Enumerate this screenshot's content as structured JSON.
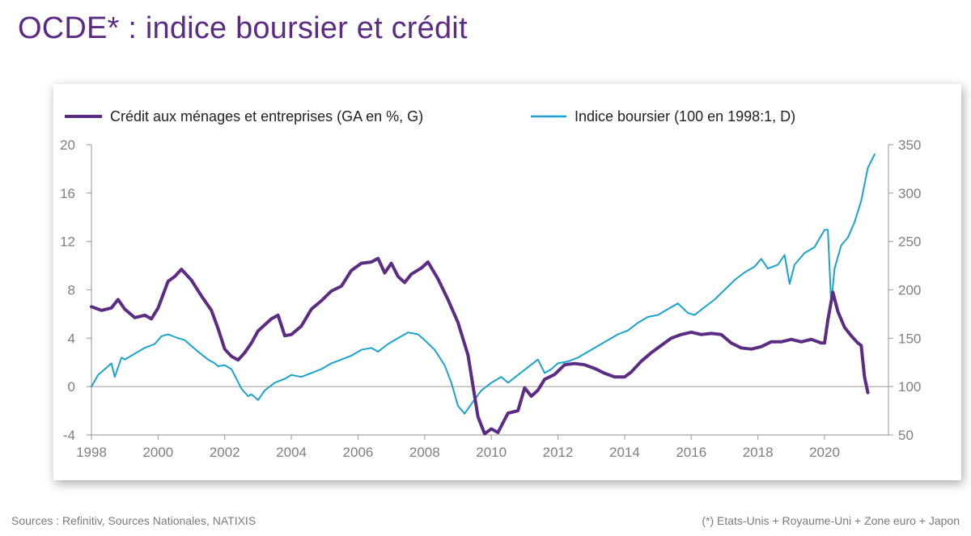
{
  "title": "OCDE* : indice boursier et crédit",
  "footer": {
    "sources": "Sources : Refinitiv, Sources Nationales, NATIXIS",
    "note": "(*) Etats-Unis + Royaume-Uni + Zone euro + Japon"
  },
  "colors": {
    "credit": "#5b2c83",
    "stock": "#1aa3cf",
    "axis": "#a6a6a6",
    "title": "#5b2c83"
  },
  "chart_data": {
    "type": "line",
    "title": "",
    "x_range": [
      1998,
      2021.8
    ],
    "x_ticks": [
      1998,
      2000,
      2002,
      2004,
      2006,
      2008,
      2010,
      2012,
      2014,
      2016,
      2018,
      2020
    ],
    "x_tick_labels": [
      "1998",
      "2000",
      "2002",
      "2004",
      "2006",
      "2008",
      "2010",
      "2012",
      "2014",
      "2016",
      "2018",
      "2020"
    ],
    "y_left": {
      "range": [
        -4,
        20
      ],
      "ticks": [
        -4,
        0,
        4,
        8,
        12,
        16,
        20
      ],
      "tick_labels": [
        "-4",
        "0",
        "4",
        "8",
        "12",
        "16",
        "20"
      ]
    },
    "y_right": {
      "range": [
        50,
        350
      ],
      "ticks": [
        50,
        100,
        150,
        200,
        250,
        300,
        350
      ],
      "tick_labels": [
        "50",
        "100",
        "150",
        "200",
        "250",
        "300",
        "350"
      ]
    },
    "zero_line": true,
    "grid": false,
    "legend_position": "top",
    "series": [
      {
        "name": "Crédit aux ménages et entreprises (GA en %, G)",
        "axis": "left",
        "color": "#5b2c83",
        "x": [
          1998.0,
          1998.3,
          1998.6,
          1998.8,
          1999.0,
          1999.3,
          1999.6,
          1999.8,
          2000.0,
          2000.3,
          2000.5,
          2000.7,
          2001.0,
          2001.3,
          2001.6,
          2001.8,
          2002.0,
          2002.2,
          2002.4,
          2002.6,
          2002.8,
          2003.0,
          2003.2,
          2003.4,
          2003.6,
          2003.8,
          2004.0,
          2004.3,
          2004.6,
          2004.9,
          2005.2,
          2005.5,
          2005.8,
          2006.1,
          2006.4,
          2006.6,
          2006.8,
          2007.0,
          2007.2,
          2007.4,
          2007.6,
          2007.9,
          2008.1,
          2008.4,
          2008.7,
          2009.0,
          2009.3,
          2009.6,
          2009.8,
          2010.0,
          2010.2,
          2010.5,
          2010.8,
          2011.0,
          2011.2,
          2011.4,
          2011.6,
          2011.9,
          2012.2,
          2012.5,
          2012.8,
          2013.1,
          2013.4,
          2013.7,
          2014.0,
          2014.2,
          2014.5,
          2014.8,
          2015.1,
          2015.4,
          2015.7,
          2016.0,
          2016.3,
          2016.6,
          2016.9,
          2017.2,
          2017.5,
          2017.8,
          2018.1,
          2018.4,
          2018.7,
          2019.0,
          2019.3,
          2019.6,
          2019.9,
          2020.0,
          2020.1,
          2020.25,
          2020.4,
          2020.6,
          2020.8,
          2021.0,
          2021.1,
          2021.2,
          2021.3
        ],
        "y": [
          6.6,
          6.3,
          6.5,
          7.2,
          6.4,
          5.7,
          5.9,
          5.6,
          6.5,
          8.7,
          9.1,
          9.7,
          8.8,
          7.5,
          6.3,
          4.8,
          3.1,
          2.5,
          2.2,
          2.8,
          3.6,
          4.6,
          5.1,
          5.6,
          5.9,
          4.2,
          4.3,
          5.0,
          6.4,
          7.1,
          7.9,
          8.3,
          9.6,
          10.2,
          10.3,
          10.6,
          9.4,
          10.2,
          9.1,
          8.6,
          9.3,
          9.8,
          10.3,
          8.9,
          7.2,
          5.3,
          2.6,
          -2.5,
          -3.9,
          -3.5,
          -3.8,
          -2.2,
          -2.0,
          -0.1,
          -0.8,
          -0.3,
          0.6,
          1.0,
          1.8,
          1.9,
          1.8,
          1.5,
          1.1,
          0.8,
          0.8,
          1.2,
          2.1,
          2.8,
          3.4,
          4.0,
          4.3,
          4.5,
          4.3,
          4.4,
          4.3,
          3.6,
          3.2,
          3.1,
          3.3,
          3.7,
          3.7,
          3.9,
          3.7,
          3.9,
          3.6,
          3.6,
          5.5,
          7.8,
          6.2,
          4.9,
          4.2,
          3.6,
          3.4,
          0.8,
          -0.5
        ]
      },
      {
        "name": "Indice boursier (100 en 1998:1, D)",
        "axis": "right",
        "color": "#1aa3cf",
        "x": [
          1998.0,
          1998.2,
          1998.4,
          1998.6,
          1998.7,
          1998.9,
          1999.0,
          1999.3,
          1999.6,
          1999.9,
          2000.1,
          2000.3,
          2000.6,
          2000.8,
          2001.0,
          2001.2,
          2001.5,
          2001.7,
          2001.8,
          2002.0,
          2002.2,
          2002.5,
          2002.7,
          2002.8,
          2003.0,
          2003.2,
          2003.5,
          2003.8,
          2004.0,
          2004.3,
          2004.6,
          2004.9,
          2005.2,
          2005.5,
          2005.8,
          2006.1,
          2006.4,
          2006.6,
          2006.9,
          2007.2,
          2007.5,
          2007.8,
          2008.0,
          2008.3,
          2008.6,
          2008.8,
          2009.0,
          2009.2,
          2009.4,
          2009.7,
          2010.0,
          2010.3,
          2010.5,
          2010.8,
          2011.1,
          2011.4,
          2011.6,
          2011.8,
          2012.0,
          2012.3,
          2012.6,
          2012.9,
          2013.2,
          2013.5,
          2013.8,
          2014.1,
          2014.4,
          2014.7,
          2015.0,
          2015.3,
          2015.6,
          2015.9,
          2016.1,
          2016.4,
          2016.7,
          2017.0,
          2017.3,
          2017.6,
          2017.9,
          2018.1,
          2018.3,
          2018.6,
          2018.8,
          2018.95,
          2019.1,
          2019.4,
          2019.7,
          2020.0,
          2020.1,
          2020.2,
          2020.3,
          2020.5,
          2020.7,
          2020.9,
          2021.1,
          2021.3,
          2021.5
        ],
        "y": [
          100,
          112,
          118,
          124,
          110,
          130,
          128,
          134,
          140,
          144,
          152,
          154,
          150,
          148,
          142,
          136,
          128,
          124,
          121,
          122,
          118,
          98,
          90,
          92,
          86,
          96,
          104,
          108,
          112,
          110,
          114,
          118,
          124,
          128,
          132,
          138,
          140,
          136,
          144,
          150,
          156,
          154,
          148,
          138,
          122,
          104,
          80,
          72,
          82,
          96,
          104,
          110,
          104,
          112,
          120,
          128,
          114,
          118,
          124,
          126,
          130,
          136,
          142,
          148,
          154,
          158,
          166,
          172,
          174,
          180,
          186,
          176,
          174,
          182,
          190,
          200,
          210,
          218,
          224,
          232,
          222,
          226,
          236,
          206,
          226,
          238,
          244,
          262,
          262,
          186,
          222,
          246,
          254,
          270,
          292,
          326,
          340
        ]
      }
    ]
  }
}
